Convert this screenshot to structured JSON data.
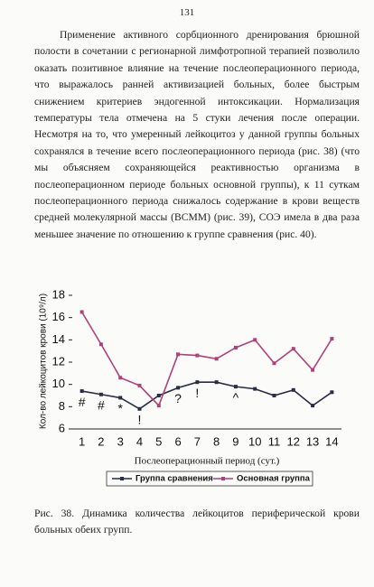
{
  "page_number": "131",
  "paragraph": "Применение активного сорбционного дренирования брюшной полости в сочетании с регионарной лимфотропной терапией позволило оказать позитивное влияние на течение послеоперационного периода, что выражалось ранней активизацией больных, более быстрым снижением критериев эндогенной интоксикации. Нормализация температуры тела отмечена на 5 стуки лечения после операции. Несмотря на то, что умеренный лейкоцитоз у данной группы больных сохранялся в течение всего послеоперационного периода (рис. 38) (что мы объясняем сохраняющейся реактивностью организма в послеоперационном периоде больных основной группы), к 11 суткам послеоперационного периода снижалось содержание в крови веществ средней молекулярной массы (ВСММ) (рис. 39), СОЭ имела в два раза меньшее значение по отношению к группе сравнения (рис. 40).",
  "chart_data": {
    "type": "line",
    "y_label": "Кол-во лейкоцитов крови (10⁹/л)",
    "x_label": "Послеоперационный период (сут.)",
    "categories": [
      1,
      2,
      3,
      4,
      5,
      6,
      7,
      8,
      9,
      10,
      11,
      12,
      13,
      14
    ],
    "series": [
      {
        "name": "Группа сравнения",
        "color": "#2a2b45",
        "values": [
          9.4,
          9.1,
          8.8,
          7.8,
          9.0,
          9.7,
          10.2,
          10.2,
          9.8,
          9.6,
          9.0,
          9.5,
          8.1,
          9.3
        ]
      },
      {
        "name": "Основная группа",
        "color": "#b0407a",
        "values": [
          16.5,
          13.6,
          10.6,
          9.9,
          8.1,
          12.7,
          12.6,
          12.3,
          13.3,
          14.0,
          11.9,
          13.2,
          11.3,
          14.1
        ]
      }
    ],
    "annotations": [
      "#",
      "#",
      "*",
      "!",
      null,
      "?",
      "!",
      null,
      "^",
      null,
      null,
      null,
      null,
      null
    ],
    "ylim": [
      6,
      18
    ],
    "yticks": [
      6,
      8,
      10,
      12,
      14,
      16,
      18
    ],
    "legend": "bottom"
  },
  "caption": "Рис. 38. Динамика количества лейкоцитов периферической крови больных обеих групп."
}
